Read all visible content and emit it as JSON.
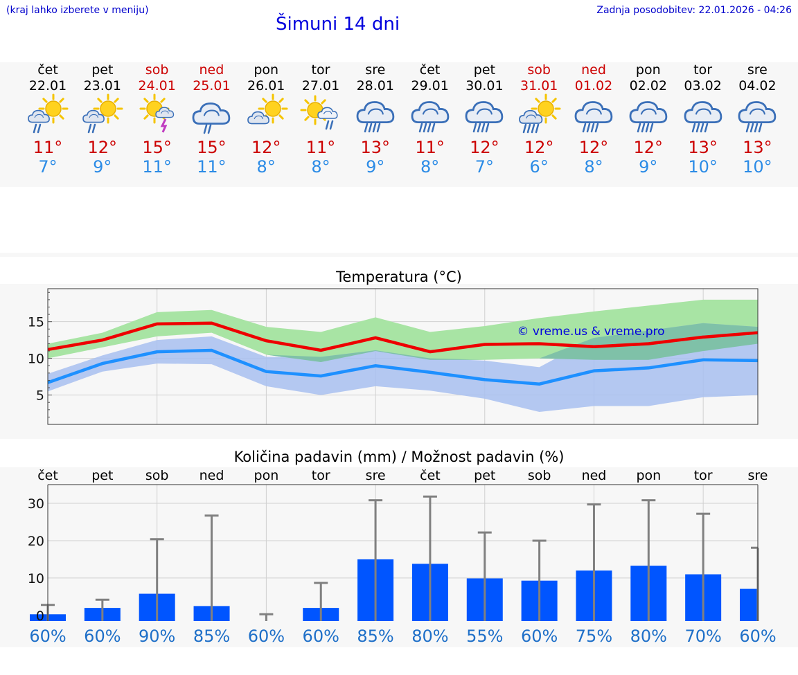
{
  "header": {
    "hint": "(kraj lahko izberete v meniju)",
    "title": "Šimuni 14 dni",
    "updated": "Zadnja posodobitev: 22.01.2026 - 04:26"
  },
  "days": [
    {
      "name": "čet",
      "date": "22.01",
      "weekend": false,
      "icon": "partly-sunny-rain-icon",
      "max": "11°",
      "min": "7°"
    },
    {
      "name": "pet",
      "date": "23.01",
      "weekend": false,
      "icon": "partly-sunny-rain-icon",
      "max": "12°",
      "min": "9°"
    },
    {
      "name": "sob",
      "date": "24.01",
      "weekend": true,
      "icon": "sun-thunderstorm-icon",
      "max": "15°",
      "min": "11°"
    },
    {
      "name": "ned",
      "date": "25.01",
      "weekend": true,
      "icon": "cloud-rain-icon",
      "max": "15°",
      "min": "11°"
    },
    {
      "name": "pon",
      "date": "26.01",
      "weekend": false,
      "icon": "partly-sunny-icon",
      "max": "12°",
      "min": "8°"
    },
    {
      "name": "tor",
      "date": "27.01",
      "weekend": false,
      "icon": "sun-cloud-rain-icon",
      "max": "11°",
      "min": "8°"
    },
    {
      "name": "sre",
      "date": "28.01",
      "weekend": false,
      "icon": "cloud-heavy-rain-icon",
      "max": "13°",
      "min": "9°"
    },
    {
      "name": "čet",
      "date": "29.01",
      "weekend": false,
      "icon": "cloud-heavy-rain-icon",
      "max": "11°",
      "min": "8°"
    },
    {
      "name": "pet",
      "date": "30.01",
      "weekend": false,
      "icon": "cloud-heavy-rain-icon",
      "max": "12°",
      "min": "7°"
    },
    {
      "name": "sob",
      "date": "31.01",
      "weekend": true,
      "icon": "partly-sunny-heavy-rain-icon",
      "max": "12°",
      "min": "6°"
    },
    {
      "name": "ned",
      "date": "01.02",
      "weekend": true,
      "icon": "cloud-heavy-rain-icon",
      "max": "12°",
      "min": "8°"
    },
    {
      "name": "pon",
      "date": "02.02",
      "weekend": false,
      "icon": "cloud-heavy-rain-icon",
      "max": "12°",
      "min": "9°"
    },
    {
      "name": "tor",
      "date": "03.02",
      "weekend": false,
      "icon": "cloud-heavy-rain-icon",
      "max": "13°",
      "min": "10°"
    },
    {
      "name": "sre",
      "date": "04.02",
      "weekend": false,
      "icon": "cloud-heavy-rain-icon",
      "max": "13°",
      "min": "10°"
    }
  ],
  "colors": {
    "max_line": "#ee0000",
    "min_line": "#1e90ff",
    "max_band": "#a8e4a4",
    "min_band": "#a8c0f0",
    "overlap_band": "#7fc1a8",
    "bar": "#0055ff",
    "error": "#808080",
    "weekend": "#cc0000",
    "precip_pct": "#1e6fc8"
  },
  "chart_data": [
    {
      "type": "line",
      "title": "Temperatura (°C)",
      "watermark": "© vreme.us & vreme.pro",
      "ylim": [
        1,
        19.5
      ],
      "yticks": [
        5,
        10,
        15
      ],
      "series": [
        {
          "name": "max",
          "values": [
            11.2,
            12.5,
            14.7,
            14.8,
            12.4,
            11.1,
            12.8,
            10.9,
            11.9,
            12.0,
            11.6,
            12.0,
            12.9,
            13.5
          ],
          "band_low": [
            10.0,
            11.5,
            13.0,
            13.5,
            10.5,
            9.5,
            11.0,
            9.8,
            9.8,
            10.0,
            9.8,
            9.8,
            11.0,
            12.0
          ],
          "band_high": [
            12.0,
            13.5,
            16.3,
            16.6,
            14.3,
            13.6,
            15.6,
            13.6,
            14.4,
            15.5,
            16.4,
            17.2,
            18.0,
            18.0
          ]
        },
        {
          "name": "min",
          "values": [
            6.7,
            9.3,
            10.9,
            11.1,
            8.2,
            7.6,
            9.0,
            8.1,
            7.1,
            6.5,
            8.3,
            8.7,
            9.8,
            9.7
          ],
          "band_low": [
            5.5,
            8.2,
            9.3,
            9.2,
            6.2,
            5.0,
            6.2,
            5.6,
            4.5,
            2.7,
            3.5,
            3.5,
            4.7,
            5.0
          ],
          "band_high": [
            7.9,
            10.4,
            12.5,
            13.0,
            10.2,
            10.2,
            11.1,
            10.0,
            9.7,
            8.8,
            12.8,
            13.8,
            14.8,
            14.3
          ]
        }
      ]
    },
    {
      "type": "bar",
      "title": "Količina padavin (mm) / Možnost padavin (%)",
      "categories": [
        "čet",
        "pet",
        "sob",
        "ned",
        "pon",
        "tor",
        "sre",
        "čet",
        "pet",
        "sob",
        "ned",
        "pon",
        "tor",
        "sre"
      ],
      "values": [
        0.3,
        2.0,
        5.8,
        2.5,
        0,
        2.0,
        15.0,
        13.8,
        9.9,
        9.3,
        12.0,
        13.3,
        11.0,
        7.1
      ],
      "error_high": [
        2.8,
        4.2,
        20.4,
        26.7,
        0.3,
        8.7,
        30.8,
        31.8,
        22.2,
        20.0,
        29.7,
        30.8,
        27.2,
        18.1
      ],
      "probability": [
        "60%",
        "60%",
        "90%",
        "85%",
        "60%",
        "60%",
        "85%",
        "80%",
        "55%",
        "60%",
        "75%",
        "80%",
        "70%",
        "60%"
      ],
      "ylim": [
        -1.5,
        35
      ],
      "yticks": [
        0,
        10,
        20,
        30
      ]
    }
  ]
}
